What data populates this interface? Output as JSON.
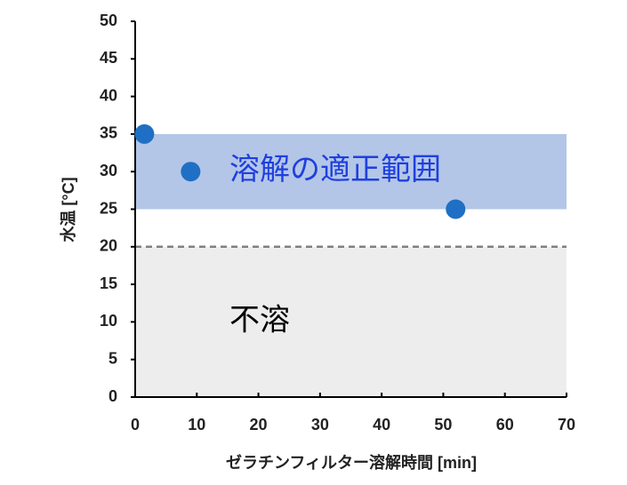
{
  "chart_data": {
    "type": "scatter",
    "x_label": "ゼラチンフィルター溶解時間 [min]",
    "y_label": "水温 [°C]",
    "series": [
      {
        "color": "#1f6fc4",
        "x": [
          1.5,
          9,
          52
        ],
        "values": [
          35,
          30,
          25
        ]
      }
    ],
    "regions": [
      {
        "label": "溶解の適正範囲",
        "range": [
          25,
          35
        ],
        "color": "#b3c6e7",
        "label_color": "#1f3fe0"
      },
      {
        "label": "不溶",
        "range": [
          0,
          20
        ],
        "color": "#ededed",
        "label_color": "#000000"
      }
    ],
    "reference_line": {
      "value": 20,
      "color": "#808080"
    },
    "xlim": [
      0,
      70
    ],
    "xticks": [
      0,
      10,
      20,
      30,
      40,
      50,
      60,
      70
    ],
    "ylim": [
      0,
      50
    ],
    "yticks": [
      0,
      5,
      10,
      15,
      20,
      25,
      30,
      35,
      40,
      45,
      50
    ]
  }
}
